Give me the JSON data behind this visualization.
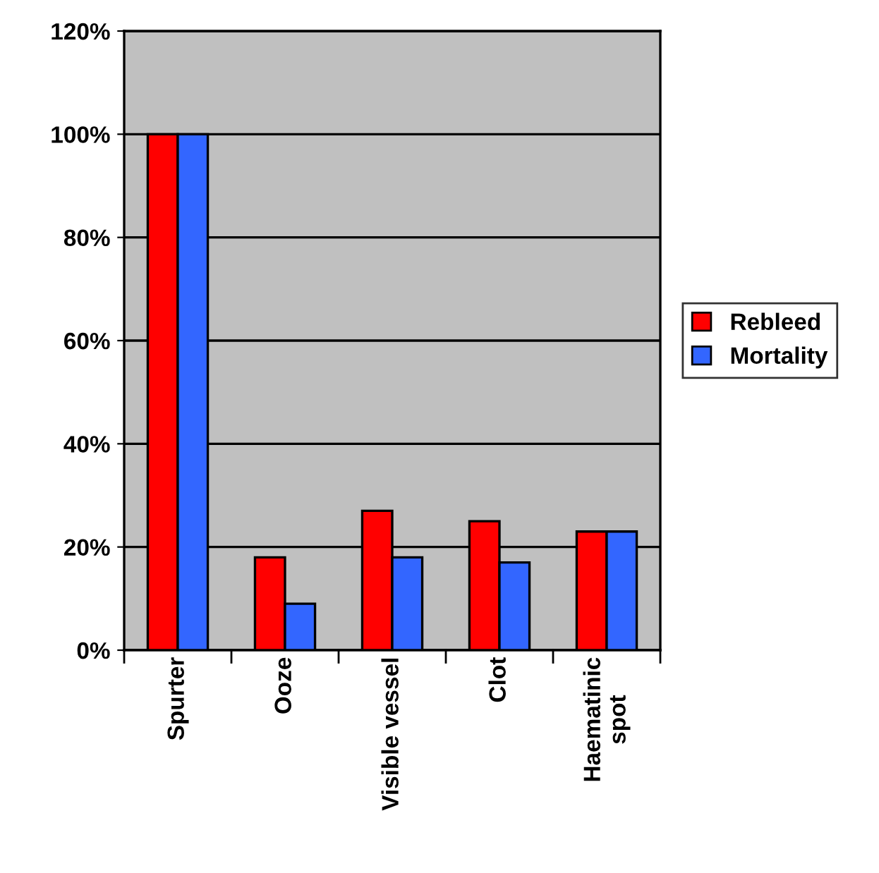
{
  "chart_data": {
    "type": "bar",
    "categories": [
      "Spurter",
      "Ooze",
      "Visible vessel",
      "Clot",
      "Haematinic\nspot"
    ],
    "series": [
      {
        "name": "Rebleed",
        "color": "#ff0000",
        "values": [
          100,
          18,
          27,
          25,
          23
        ]
      },
      {
        "name": "Mortality",
        "color": "#3366ff",
        "values": [
          100,
          9,
          18,
          17,
          23
        ]
      }
    ],
    "ylim": [
      0,
      120
    ],
    "yticks": [
      {
        "value": 0,
        "label": "0%"
      },
      {
        "value": 20,
        "label": "20%"
      },
      {
        "value": 40,
        "label": "40%"
      },
      {
        "value": 60,
        "label": "60%"
      },
      {
        "value": 80,
        "label": "80%"
      },
      {
        "value": 100,
        "label": "100%"
      },
      {
        "value": 120,
        "label": "120%"
      }
    ],
    "grid": "y",
    "legend": "right"
  }
}
